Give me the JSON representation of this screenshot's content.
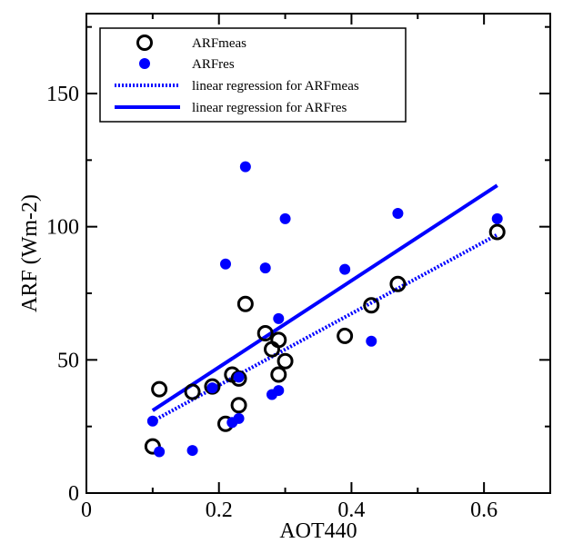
{
  "chart_data": {
    "type": "scatter",
    "xlabel": "AOT440",
    "ylabel": "ARF (Wm-2)",
    "xlim": [
      0,
      0.7
    ],
    "ylim": [
      0,
      180
    ],
    "x_ticks": [
      {
        "value": 0,
        "label": "0"
      },
      {
        "value": 0.2,
        "label": "0.2"
      },
      {
        "value": 0.4,
        "label": "0.4"
      },
      {
        "value": 0.6,
        "label": "0.6"
      }
    ],
    "y_ticks": [
      {
        "value": 0,
        "label": "0"
      },
      {
        "value": 50,
        "label": "50"
      },
      {
        "value": 100,
        "label": "100"
      },
      {
        "value": 150,
        "label": "150"
      }
    ],
    "grid": false,
    "legend_position": "top-left",
    "series": [
      {
        "name": "ARFmeas",
        "kind": "scatter",
        "marker": "open-circle",
        "color": "#000000",
        "points": [
          [
            0.1,
            17.5
          ],
          [
            0.11,
            39.0
          ],
          [
            0.16,
            38.0
          ],
          [
            0.19,
            40.0
          ],
          [
            0.21,
            26.0
          ],
          [
            0.22,
            44.5
          ],
          [
            0.23,
            43.0
          ],
          [
            0.23,
            33.0
          ],
          [
            0.24,
            71.0
          ],
          [
            0.27,
            60.0
          ],
          [
            0.28,
            54.0
          ],
          [
            0.29,
            57.5
          ],
          [
            0.29,
            44.5
          ],
          [
            0.3,
            49.5
          ],
          [
            0.39,
            59.0
          ],
          [
            0.43,
            70.5
          ],
          [
            0.47,
            78.5
          ],
          [
            0.62,
            98.0
          ]
        ]
      },
      {
        "name": "ARFres",
        "kind": "scatter",
        "marker": "filled-circle",
        "color": "#0000ff",
        "points": [
          [
            0.1,
            27.0
          ],
          [
            0.11,
            15.5
          ],
          [
            0.16,
            16.0
          ],
          [
            0.19,
            39.5
          ],
          [
            0.21,
            86.0
          ],
          [
            0.22,
            26.5
          ],
          [
            0.23,
            28.0
          ],
          [
            0.23,
            43.5
          ],
          [
            0.24,
            122.5
          ],
          [
            0.27,
            84.5
          ],
          [
            0.28,
            37.0
          ],
          [
            0.29,
            65.5
          ],
          [
            0.29,
            38.5
          ],
          [
            0.3,
            103.0
          ],
          [
            0.39,
            84.0
          ],
          [
            0.43,
            57.0
          ],
          [
            0.47,
            105.0
          ],
          [
            0.62,
            103.0
          ]
        ]
      },
      {
        "name": "linear regression for ARFmeas",
        "kind": "line",
        "style": "dotted",
        "color": "#0000ff",
        "points": [
          [
            0.1,
            27.0
          ],
          [
            0.62,
            97.0
          ]
        ]
      },
      {
        "name": "linear regression for ARFres",
        "kind": "line",
        "style": "solid",
        "color": "#0000ff",
        "points": [
          [
            0.1,
            31.0
          ],
          [
            0.62,
            115.5
          ]
        ]
      }
    ]
  }
}
